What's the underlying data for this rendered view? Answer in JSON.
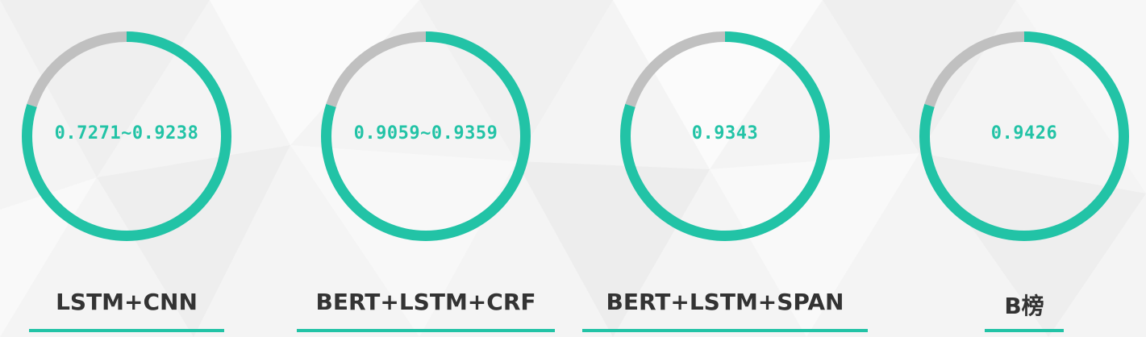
{
  "colors": {
    "accent": "#22c3a6",
    "track": "#c0c0c0",
    "background": "#f5f5f5",
    "label": "#333333"
  },
  "chart_data": [
    {
      "type": "pie",
      "center_text": "0.7271~0.9238",
      "label": "LSTM+CNN",
      "value": 0.8,
      "remainder": 0.2
    },
    {
      "type": "pie",
      "center_text": "0.9059~0.9359",
      "label": "BERT+LSTM+CRF",
      "value": 0.8,
      "remainder": 0.2
    },
    {
      "type": "pie",
      "center_text": "0.9343",
      "label": "BERT+LSTM+SPAN",
      "value": 0.8,
      "remainder": 0.2
    },
    {
      "type": "pie",
      "center_text": "0.9426",
      "label": "B榜",
      "value": 0.8,
      "remainder": 0.2
    }
  ]
}
